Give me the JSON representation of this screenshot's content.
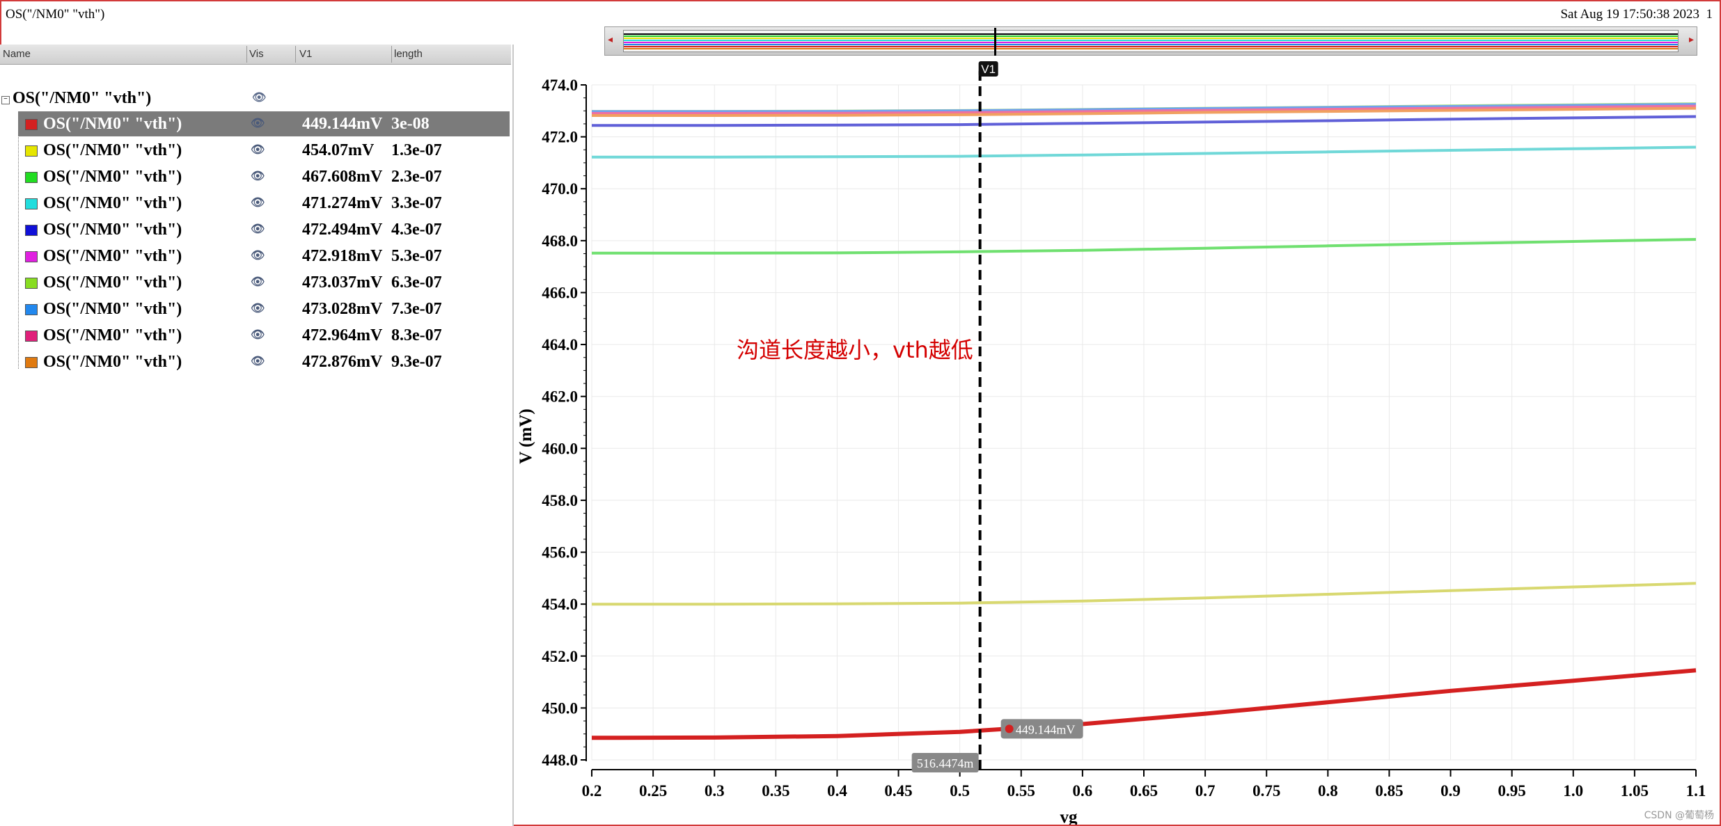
{
  "window": {
    "title": "OS(\"/NM0\" \"vth\")",
    "date": "Sat Aug 19 17:50:38 2023",
    "page": "1"
  },
  "legend": {
    "headers": {
      "name": "Name",
      "vis": "Vis",
      "v1": "V1",
      "length": "length"
    },
    "root_label": "OS(\"/NM0\" \"vth\")",
    "rows": [
      {
        "label": "OS(\"/NM0\" \"vth\")",
        "v1": "449.144mV",
        "length": "3e-08",
        "color": "#d42020",
        "selected": true
      },
      {
        "label": "OS(\"/NM0\" \"vth\")",
        "v1": "454.07mV",
        "length": "1.3e-07",
        "color": "#e6e600"
      },
      {
        "label": "OS(\"/NM0\" \"vth\")",
        "v1": "467.608mV",
        "length": "2.3e-07",
        "color": "#22dd22"
      },
      {
        "label": "OS(\"/NM0\" \"vth\")",
        "v1": "471.274mV",
        "length": "3.3e-07",
        "color": "#22dddd"
      },
      {
        "label": "OS(\"/NM0\" \"vth\")",
        "v1": "472.494mV",
        "length": "4.3e-07",
        "color": "#1010d8"
      },
      {
        "label": "OS(\"/NM0\" \"vth\")",
        "v1": "472.918mV",
        "length": "5.3e-07",
        "color": "#e020e0"
      },
      {
        "label": "OS(\"/NM0\" \"vth\")",
        "v1": "473.037mV",
        "length": "6.3e-07",
        "color": "#88dd22"
      },
      {
        "label": "OS(\"/NM0\" \"vth\")",
        "v1": "473.028mV",
        "length": "7.3e-07",
        "color": "#2288ee"
      },
      {
        "label": "OS(\"/NM0\" \"vth\")",
        "v1": "472.964mV",
        "length": "8.3e-07",
        "color": "#e0207a"
      },
      {
        "label": "OS(\"/NM0\" \"vth\")",
        "v1": "472.876mV",
        "length": "9.3e-07",
        "color": "#e07a10"
      }
    ]
  },
  "annotation": "沟道长度越小，vth越低",
  "watermark": "CSDN @葡萄杨",
  "chart_data": {
    "type": "line",
    "xlabel": "vg",
    "ylabel": "V (mV)",
    "xlim": [
      0.2,
      1.1
    ],
    "ylim": [
      448.0,
      474.0
    ],
    "xticks": [
      "0.2",
      "0.25",
      "0.3",
      "0.35",
      "0.4",
      "0.45",
      "0.5",
      "0.55",
      "0.6",
      "0.65",
      "0.7",
      "0.75",
      "0.8",
      "0.85",
      "0.9",
      "0.95",
      "1.0",
      "1.05",
      "1.1"
    ],
    "yticks": [
      "448.0",
      "450.0",
      "452.0",
      "454.0",
      "456.0",
      "458.0",
      "460.0",
      "462.0",
      "464.0",
      "466.0",
      "468.0",
      "470.0",
      "472.0",
      "474.0"
    ],
    "grid": true,
    "cursor": {
      "name": "V1",
      "x": 0.5164474,
      "x_label": "516.4474m",
      "y_label": "449.144mV",
      "y": 449.144
    },
    "x": [
      0.2,
      0.3,
      0.4,
      0.5,
      0.6,
      0.7,
      0.8,
      0.9,
      1.0,
      1.1
    ],
    "series": [
      {
        "color": "#d42020",
        "values": [
          448.85,
          448.86,
          448.92,
          449.08,
          449.38,
          449.78,
          450.22,
          450.66,
          451.05,
          451.45
        ]
      },
      {
        "color": "#d8d870",
        "values": [
          454.0,
          454.0,
          454.01,
          454.04,
          454.12,
          454.24,
          454.38,
          454.52,
          454.66,
          454.8
        ]
      },
      {
        "color": "#70e070",
        "values": [
          467.52,
          467.52,
          467.53,
          467.57,
          467.63,
          467.71,
          467.8,
          467.89,
          467.97,
          468.05
        ]
      },
      {
        "color": "#70d8d8",
        "values": [
          471.22,
          471.22,
          471.23,
          471.25,
          471.3,
          471.36,
          471.42,
          471.48,
          471.54,
          471.6
        ]
      },
      {
        "color": "#6060d8",
        "values": [
          472.44,
          472.44,
          472.45,
          472.47,
          472.52,
          472.57,
          472.62,
          472.68,
          472.73,
          472.78
        ]
      },
      {
        "color": "#e070e0",
        "values": [
          472.86,
          472.86,
          472.87,
          472.89,
          472.93,
          472.98,
          473.03,
          473.08,
          473.12,
          473.16
        ]
      },
      {
        "color": "#a0e070",
        "values": [
          472.98,
          472.98,
          472.99,
          473.01,
          473.05,
          473.1,
          473.14,
          473.19,
          473.23,
          473.27
        ]
      },
      {
        "color": "#70a0f0",
        "values": [
          472.97,
          472.97,
          472.98,
          473.0,
          473.04,
          473.09,
          473.13,
          473.17,
          473.21,
          473.25
        ]
      },
      {
        "color": "#f070a0",
        "values": [
          472.9,
          472.9,
          472.91,
          472.93,
          472.97,
          473.02,
          473.06,
          473.1,
          473.14,
          473.18
        ]
      },
      {
        "color": "#f0a060",
        "values": [
          472.82,
          472.82,
          472.83,
          472.85,
          472.89,
          472.94,
          472.98,
          473.02,
          473.06,
          473.1
        ]
      }
    ]
  }
}
